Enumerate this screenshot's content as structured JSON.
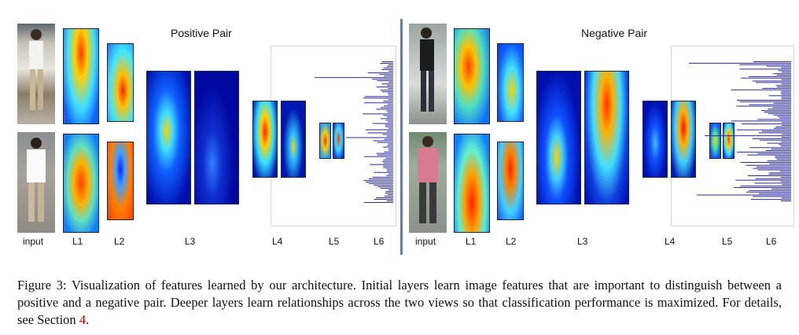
{
  "figure": {
    "titles": {
      "positive": "Positive Pair",
      "negative": "Negative Pair"
    },
    "layer_labels": [
      "input",
      "L1",
      "L2",
      "L3",
      "L4",
      "L5",
      "L6"
    ],
    "caption_before_ref": "Figure 3: Visualization of features learned by our architecture. Initial layers learn image features that are important to distinguish between a positive and a negative pair. Deeper layers learn relationships across the two views so that classification performance is maximized. For details, see Section ",
    "caption_ref": "4",
    "caption_after_ref": "."
  }
}
